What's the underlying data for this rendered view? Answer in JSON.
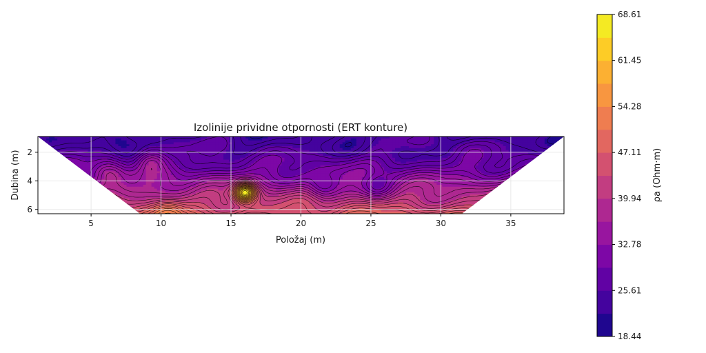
{
  "chart_data": {
    "type": "heatmap",
    "title": "Izolinije prividne otpornosti (ERT konture)",
    "xlabel": "Položaj (m)",
    "ylabel": "Dubina (m)",
    "xlim": [
      1.2,
      38.8
    ],
    "ylim": [
      6.3,
      0.9
    ],
    "x_ticks": [
      5,
      10,
      15,
      20,
      25,
      30,
      35
    ],
    "y_ticks": [
      2,
      4,
      6
    ],
    "grid": true,
    "colormap": "plasma",
    "colorbar": {
      "label": "ρa (Ohm·m)",
      "min": 18.44,
      "max": 68.61,
      "ticks": [
        68.61,
        61.45,
        54.28,
        47.11,
        39.94,
        32.78,
        25.61,
        18.44
      ]
    },
    "data_region": {
      "top_depth": 0.9,
      "bottom_depth": 6.3,
      "top_x": [
        1.2,
        38.8
      ],
      "bottom_x": [
        8.5,
        31.5
      ]
    },
    "base_profile": [
      {
        "depth": 0.9,
        "value": 24.0
      },
      {
        "depth": 2.0,
        "value": 25.5
      },
      {
        "depth": 3.0,
        "value": 29.0
      },
      {
        "depth": 4.0,
        "value": 34.0
      },
      {
        "depth": 5.0,
        "value": 39.5
      },
      {
        "depth": 6.0,
        "value": 45.0
      },
      {
        "depth": 6.3,
        "value": 47.0
      }
    ],
    "anomalies": [
      {
        "x": 16.0,
        "depth": 4.8,
        "value": 68.61,
        "kind": "high"
      },
      {
        "x": 9.2,
        "depth": 2.5,
        "value": 36.0,
        "kind": "high"
      },
      {
        "x": 6.3,
        "depth": 3.4,
        "value": 37.0,
        "kind": "high"
      },
      {
        "x": 21.5,
        "depth": 4.5,
        "value": 30.0,
        "kind": "low"
      },
      {
        "x": 25.5,
        "depth": 4.5,
        "value": 31.0,
        "kind": "low"
      },
      {
        "x": 10.5,
        "depth": 6.1,
        "value": 52.0,
        "kind": "high"
      },
      {
        "x": 31.8,
        "depth": 1.8,
        "value": 27.0,
        "kind": "high"
      },
      {
        "x": 7.0,
        "depth": 1.1,
        "value": 19.5,
        "kind": "low"
      }
    ]
  },
  "colors": {
    "grid": "#bdbdbd",
    "grid_inner": "#e6e6e6",
    "contour": "#000000",
    "plasma": [
      "#0d0887",
      "#46039f",
      "#7201a8",
      "#9c179e",
      "#bd3786",
      "#d8576b",
      "#ed7953",
      "#fb9f3a",
      "#fdca26",
      "#f0f921"
    ]
  }
}
